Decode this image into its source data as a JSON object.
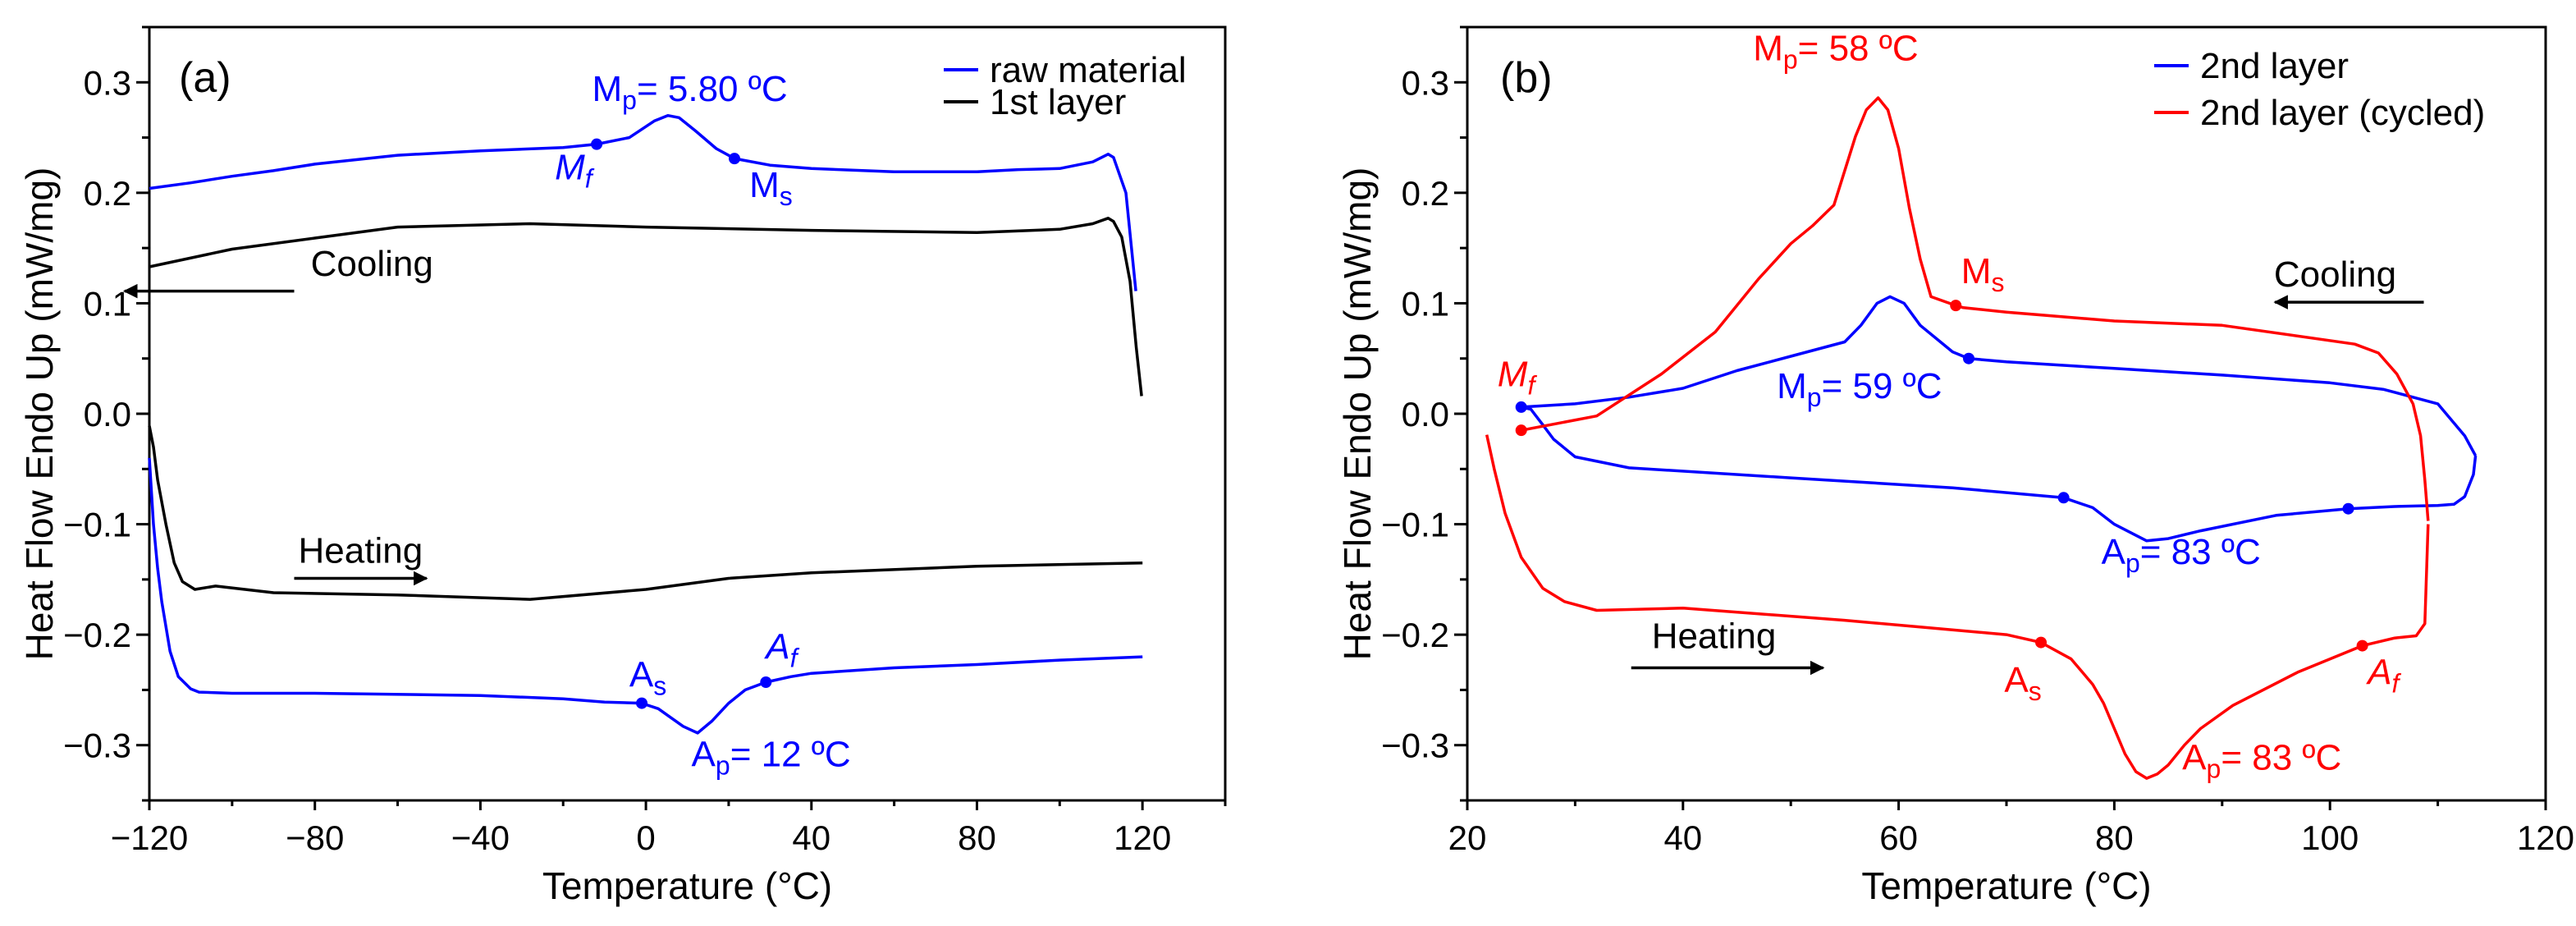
{
  "chart_data": [
    {
      "type": "line",
      "panel_label": "(a)",
      "xlabel": "Temperature (°C)",
      "ylabel": "Heat Flow Endo Up (mW/mg)",
      "xlim": [
        -120,
        140
      ],
      "ylim": [
        -0.35,
        0.35
      ],
      "xticks": [
        -120,
        -80,
        -40,
        0,
        40,
        80,
        120
      ],
      "xtick_labels": [
        "−120",
        "−80",
        "−40",
        "0",
        "40",
        "80",
        "120"
      ],
      "yticks": [
        -0.3,
        -0.2,
        -0.1,
        0.0,
        0.1,
        0.2,
        0.3
      ],
      "ytick_labels": [
        "−0.3",
        "−0.2",
        "−0.1",
        "0.0",
        "0.1",
        "0.2",
        "0.3"
      ],
      "grid": false,
      "legend_position": "top-right",
      "series": [
        {
          "name": "raw material",
          "color": "#0000ff",
          "show_in_legend": true,
          "x": [
            118.4,
            116,
            113,
            111.7,
            108,
            100,
            90,
            80,
            60,
            40,
            30,
            21.4,
            17,
            12,
            8,
            5.3,
            2,
            -4,
            -11.9,
            -20,
            -40,
            -60,
            -80,
            -90,
            -100,
            -110,
            -120
          ],
          "y": [
            0.111,
            0.2,
            0.232,
            0.235,
            0.228,
            0.222,
            0.221,
            0.219,
            0.219,
            0.222,
            0.225,
            0.231,
            0.24,
            0.256,
            0.268,
            0.27,
            0.265,
            0.25,
            0.244,
            0.241,
            0.238,
            0.234,
            0.226,
            0.22,
            0.215,
            0.209,
            0.204
          ]
        },
        {
          "name": "raw material heating",
          "color": "#0000ff",
          "show_in_legend": false,
          "x": [
            -120,
            -119,
            -118,
            -117,
            -115,
            -113,
            -110,
            -108,
            -100,
            -80,
            -40,
            -20,
            -10,
            -1,
            3,
            6,
            9,
            12.5,
            16,
            20,
            24,
            29,
            35,
            40,
            60,
            80,
            100,
            120
          ],
          "y": [
            -0.04,
            -0.1,
            -0.14,
            -0.17,
            -0.215,
            -0.238,
            -0.249,
            -0.252,
            -0.253,
            -0.253,
            -0.255,
            -0.258,
            -0.261,
            -0.262,
            -0.267,
            -0.275,
            -0.283,
            -0.289,
            -0.278,
            -0.262,
            -0.25,
            -0.243,
            -0.238,
            -0.235,
            -0.23,
            -0.227,
            -0.223,
            -0.22
          ]
        },
        {
          "name": "1st layer",
          "color": "#000000",
          "show_in_legend": true,
          "x": [
            119.8,
            118.5,
            117,
            115,
            113,
            111.7,
            108,
            100,
            80,
            40,
            0,
            -28,
            -60,
            -80,
            -100,
            -120
          ],
          "y": [
            0.016,
            0.06,
            0.12,
            0.16,
            0.174,
            0.177,
            0.172,
            0.167,
            0.164,
            0.166,
            0.169,
            0.172,
            0.169,
            0.159,
            0.149,
            0.133
          ]
        },
        {
          "name": "1st layer heating",
          "color": "#000000",
          "show_in_legend": false,
          "x": [
            -120,
            -119,
            -118,
            -116,
            -114,
            -112,
            -109,
            -104,
            -90,
            -60,
            -28,
            0,
            20,
            40,
            80,
            120
          ],
          "y": [
            -0.011,
            -0.03,
            -0.06,
            -0.1,
            -0.135,
            -0.152,
            -0.159,
            -0.156,
            -0.162,
            -0.164,
            -0.168,
            -0.159,
            -0.149,
            -0.144,
            -0.138,
            -0.135
          ]
        }
      ],
      "markers": [
        {
          "x": -11.9,
          "y": 0.244,
          "color": "#0000ff"
        },
        {
          "x": 21.4,
          "y": 0.231,
          "color": "#0000ff"
        },
        {
          "x": -1,
          "y": -0.262,
          "color": "#0000ff"
        },
        {
          "x": 29,
          "y": -0.243,
          "color": "#0000ff"
        }
      ],
      "annotations": [
        {
          "main": "M",
          "sub": "p",
          "rest": "= 5.80 ºC",
          "color": "#0000ff",
          "italic": false,
          "x": -13,
          "y": 0.283
        },
        {
          "main": "M",
          "sub": "f",
          "rest": "",
          "color": "#0000ff",
          "italic": true,
          "x": -22,
          "y": 0.212
        },
        {
          "main": "M",
          "sub": "s",
          "rest": "",
          "color": "#0000ff",
          "italic": false,
          "x": 25,
          "y": 0.196
        },
        {
          "main": "Cooling",
          "sub": "",
          "rest": "",
          "color": "#000000",
          "italic": false,
          "x": -81,
          "y": 0.125
        },
        {
          "main": "Heating",
          "sub": "",
          "rest": "",
          "color": "#000000",
          "italic": false,
          "x": -84,
          "y": -0.135
        },
        {
          "main": "A",
          "sub": "s",
          "rest": "",
          "color": "#0000ff",
          "italic": false,
          "x": -4,
          "y": -0.247
        },
        {
          "main": "A",
          "sub": "f",
          "rest": "",
          "color": "#0000ff",
          "italic": true,
          "x": 29,
          "y": -0.222
        },
        {
          "main": "A",
          "sub": "p",
          "rest": "= 12 ºC",
          "color": "#0000ff",
          "italic": false,
          "x": 11,
          "y": -0.319
        }
      ],
      "arrows": [
        {
          "from": [
            -85,
            0.111
          ],
          "to": [
            -126,
            0.111
          ],
          "color": "#000000"
        },
        {
          "from": [
            -85,
            -0.149
          ],
          "to": [
            -53,
            -0.149
          ],
          "color": "#000000"
        }
      ]
    },
    {
      "type": "line",
      "panel_label": "(b)",
      "xlabel": "Temperature (°C)",
      "ylabel": "Heat Flow Endo Up (mW/mg)",
      "xlim": [
        20,
        120
      ],
      "ylim": [
        -0.35,
        0.35
      ],
      "xticks": [
        20,
        40,
        60,
        80,
        100,
        120
      ],
      "xtick_labels": [
        "20",
        "40",
        "60",
        "80",
        "100",
        "120"
      ],
      "yticks": [
        -0.3,
        -0.2,
        -0.1,
        0.0,
        0.1,
        0.2,
        0.3
      ],
      "ytick_labels": [
        "−0.3",
        "−0.2",
        "−0.1",
        "0.0",
        "0.1",
        "0.2",
        "0.3"
      ],
      "grid": false,
      "legend_position": "top-right",
      "series": [
        {
          "name": "2nd layer",
          "color": "#0000ff",
          "show_in_legend": true,
          "x": [
            113.5,
            112.5,
            110,
            105,
            100,
            90,
            80,
            70,
            66.5,
            65,
            64,
            62,
            60.5,
            59.2,
            58,
            56.5,
            55,
            50,
            45,
            40,
            35,
            30,
            25,
            25.9,
            27,
            28,
            30,
            35,
            50,
            65,
            75.3,
            78,
            80,
            83,
            85,
            88,
            95,
            101.7,
            106,
            110,
            111.5,
            112.5,
            113.3,
            113.5
          ],
          "y": [
            -0.038,
            -0.02,
            0.009,
            0.022,
            0.028,
            0.035,
            0.041,
            0.047,
            0.05,
            0.056,
            0.064,
            0.08,
            0.1,
            0.106,
            0.1,
            0.08,
            0.065,
            0.052,
            0.039,
            0.023,
            0.015,
            0.009,
            0.006,
            0.004,
            -0.01,
            -0.023,
            -0.039,
            -0.049,
            -0.058,
            -0.067,
            -0.076,
            -0.085,
            -0.1,
            -0.115,
            -0.113,
            -0.106,
            -0.092,
            -0.086,
            -0.084,
            -0.083,
            -0.082,
            -0.075,
            -0.055,
            -0.038
          ]
        },
        {
          "name": "2nd layer (cycled)",
          "color": "#ff0000",
          "show_in_legend": true,
          "x": [
            109.1,
            108.8,
            108.4,
            107.7,
            106.2,
            104.5,
            102.3,
            90,
            80,
            70,
            66,
            65.3,
            63,
            62,
            61,
            60,
            59,
            58.1,
            57,
            56,
            54,
            52,
            50,
            47,
            43,
            38,
            32,
            25
          ],
          "y": [
            -0.097,
            -0.06,
            -0.02,
            0.009,
            0.036,
            0.055,
            0.063,
            0.08,
            0.084,
            0.092,
            0.096,
            0.098,
            0.106,
            0.14,
            0.186,
            0.24,
            0.275,
            0.286,
            0.275,
            0.251,
            0.189,
            0.17,
            0.154,
            0.122,
            0.074,
            0.036,
            -0.002,
            -0.015
          ]
        },
        {
          "name": "2nd layer (cycled) heating",
          "color": "#ff0000",
          "show_in_legend": false,
          "x": [
            21.8,
            22.5,
            23.5,
            25,
            27,
            29,
            32,
            40,
            55,
            70,
            73.2,
            76,
            78,
            79,
            80,
            81,
            82,
            83,
            84,
            85,
            86.5,
            88,
            91,
            97,
            103,
            106,
            108,
            108.8,
            109.1
          ],
          "y": [
            -0.019,
            -0.05,
            -0.09,
            -0.13,
            -0.158,
            -0.17,
            -0.178,
            -0.176,
            -0.187,
            -0.2,
            -0.207,
            -0.222,
            -0.245,
            -0.262,
            -0.285,
            -0.308,
            -0.324,
            -0.33,
            -0.326,
            -0.318,
            -0.3,
            -0.285,
            -0.264,
            -0.234,
            -0.21,
            -0.203,
            -0.201,
            -0.19,
            -0.1
          ]
        }
      ],
      "markers": [
        {
          "x": 25,
          "y": 0.006,
          "color": "#0000ff"
        },
        {
          "x": 66.5,
          "y": 0.05,
          "color": "#0000ff"
        },
        {
          "x": 75.3,
          "y": -0.076,
          "color": "#0000ff"
        },
        {
          "x": 101.7,
          "y": -0.086,
          "color": "#0000ff"
        },
        {
          "x": 25,
          "y": -0.015,
          "color": "#ff0000"
        },
        {
          "x": 65.3,
          "y": 0.098,
          "color": "#ff0000"
        },
        {
          "x": 73.2,
          "y": -0.207,
          "color": "#ff0000"
        },
        {
          "x": 103,
          "y": -0.21,
          "color": "#ff0000"
        }
      ],
      "annotations": [
        {
          "main": "M",
          "sub": "p",
          "rest": "= 58 ºC",
          "color": "#ff0000",
          "italic": false,
          "x": 46.5,
          "y": 0.32
        },
        {
          "main": "M",
          "sub": "s",
          "rest": "",
          "color": "#ff0000",
          "italic": false,
          "x": 65.8,
          "y": 0.118
        },
        {
          "main": "Cooling",
          "sub": "",
          "rest": "",
          "color": "#000000",
          "italic": false,
          "x": 94.8,
          "y": 0.115
        },
        {
          "main": "M",
          "sub": "f",
          "rest": "",
          "color": "#ff0000",
          "italic": true,
          "x": 22.8,
          "y": 0.025
        },
        {
          "main": "M",
          "sub": "p",
          "rest": "= 59 ºC",
          "color": "#0000ff",
          "italic": false,
          "x": 48.7,
          "y": 0.014
        },
        {
          "main": "A",
          "sub": "p",
          "rest": "= 83 ºC",
          "color": "#0000ff",
          "italic": false,
          "x": 78.8,
          "y": -0.136
        },
        {
          "main": "Heating",
          "sub": "",
          "rest": "",
          "color": "#000000",
          "italic": false,
          "x": 37.1,
          "y": -0.212
        },
        {
          "main": "A",
          "sub": "s",
          "rest": "",
          "color": "#ff0000",
          "italic": false,
          "x": 69.8,
          "y": -0.252
        },
        {
          "main": "A",
          "sub": "f",
          "rest": "",
          "color": "#ff0000",
          "italic": true,
          "x": 103.5,
          "y": -0.245
        },
        {
          "main": "A",
          "sub": "p",
          "rest": "= 83 ºC",
          "color": "#ff0000",
          "italic": false,
          "x": 86.3,
          "y": -0.322
        }
      ],
      "arrows": [
        {
          "from": [
            108.7,
            0.101
          ],
          "to": [
            94.9,
            0.101
          ],
          "color": "#000000"
        },
        {
          "from": [
            35.2,
            -0.23
          ],
          "to": [
            53,
            -0.23
          ],
          "color": "#000000"
        }
      ]
    }
  ]
}
